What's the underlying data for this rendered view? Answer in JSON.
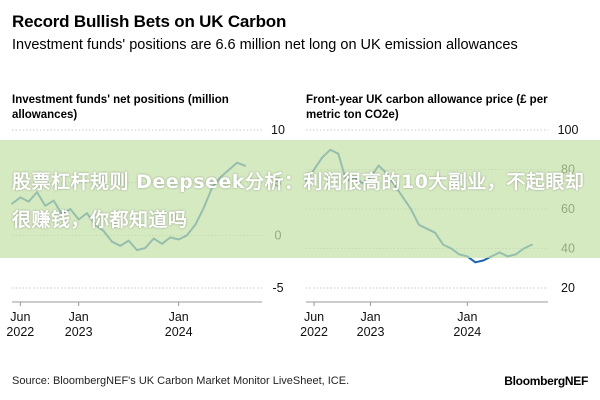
{
  "header": {
    "title": "Record Bullish Bets on UK Carbon",
    "subtitle": "Investment funds' positions are 6.6 million net long on UK emission allowances"
  },
  "chart_data": [
    {
      "type": "line",
      "title": "Investment funds' net positions (million allowances)",
      "ylim": [
        -5,
        10
      ],
      "yticks": [
        10,
        5,
        0,
        -5
      ],
      "x_tick_labels": [
        {
          "date": "2022-06",
          "label": [
            "Jun",
            "2022"
          ]
        },
        {
          "date": "2023-01",
          "label": [
            "Jan",
            "2023"
          ]
        },
        {
          "date": "2024-01",
          "label": [
            "Jan",
            "2024"
          ]
        }
      ],
      "xlim": [
        "2022-05",
        "2024-11"
      ],
      "series": [
        {
          "values": [
            [
              "2022-05",
              3.0
            ],
            [
              "2022-06",
              3.6
            ],
            [
              "2022-07",
              3.2
            ],
            [
              "2022-08",
              4.1
            ],
            [
              "2022-09",
              2.8
            ],
            [
              "2022-10",
              3.3
            ],
            [
              "2022-11",
              2.0
            ],
            [
              "2022-12",
              2.5
            ],
            [
              "2023-01",
              1.5
            ],
            [
              "2023-02",
              2.1
            ],
            [
              "2023-03",
              1.0
            ],
            [
              "2023-04",
              0.4
            ],
            [
              "2023-05",
              -0.6
            ],
            [
              "2023-06",
              -1.0
            ],
            [
              "2023-07",
              -0.5
            ],
            [
              "2023-08",
              -1.4
            ],
            [
              "2023-09",
              -1.2
            ],
            [
              "2023-10",
              -0.3
            ],
            [
              "2023-11",
              -0.8
            ],
            [
              "2023-12",
              -0.2
            ],
            [
              "2024-01",
              -0.4
            ],
            [
              "2024-02",
              0.0
            ],
            [
              "2024-03",
              1.0
            ],
            [
              "2024-04",
              2.6
            ],
            [
              "2024-05",
              4.5
            ],
            [
              "2024-06",
              5.5
            ],
            [
              "2024-07",
              6.2
            ],
            [
              "2024-08",
              6.9
            ],
            [
              "2024-09",
              6.6
            ]
          ]
        }
      ]
    },
    {
      "type": "line",
      "title": "Front-year UK carbon allowance price (£ per metric ton CO2e)",
      "ylim": [
        20,
        100
      ],
      "yticks": [
        100,
        80,
        60,
        40,
        20
      ],
      "x_tick_labels": [
        {
          "date": "2022-06",
          "label": [
            "Jun",
            "2022"
          ]
        },
        {
          "date": "2023-01",
          "label": [
            "Jan",
            "2023"
          ]
        },
        {
          "date": "2024-01",
          "label": [
            "Jan",
            "2024"
          ]
        }
      ],
      "xlim": [
        "2022-05",
        "2024-11"
      ],
      "series": [
        {
          "values": [
            [
              "2022-05",
              74
            ],
            [
              "2022-06",
              80
            ],
            [
              "2022-07",
              86
            ],
            [
              "2022-08",
              90
            ],
            [
              "2022-09",
              88
            ],
            [
              "2022-10",
              74
            ],
            [
              "2022-11",
              76
            ],
            [
              "2022-12",
              73
            ],
            [
              "2023-01",
              76
            ],
            [
              "2023-02",
              82
            ],
            [
              "2023-03",
              78
            ],
            [
              "2023-04",
              72
            ],
            [
              "2023-05",
              66
            ],
            [
              "2023-06",
              60
            ],
            [
              "2023-07",
              52
            ],
            [
              "2023-08",
              50
            ],
            [
              "2023-09",
              48
            ],
            [
              "2023-10",
              42
            ],
            [
              "2023-11",
              40
            ],
            [
              "2023-12",
              37
            ],
            [
              "2024-01",
              36
            ],
            [
              "2024-02",
              33
            ],
            [
              "2024-03",
              34
            ],
            [
              "2024-04",
              36
            ],
            [
              "2024-05",
              38
            ],
            [
              "2024-06",
              36
            ],
            [
              "2024-07",
              37
            ],
            [
              "2024-08",
              40
            ],
            [
              "2024-09",
              42
            ]
          ]
        }
      ]
    }
  ],
  "overlay_banner": "股票杠杆规则 Deepseek分析：利润很高的10大副业，不起眼却很赚钱，你都知道吗",
  "footer": {
    "source": "Source: BloombergNEF's UK Carbon Market Monitor LiveSheet, ICE.",
    "brand": "BloombergNEF"
  },
  "colors": {
    "line": "#1b63b5",
    "grid": "#c8c8c8",
    "axis_text": "#111111"
  }
}
